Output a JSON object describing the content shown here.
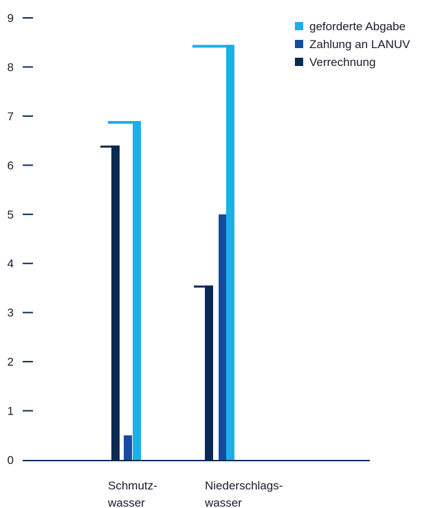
{
  "chart_data": {
    "type": "bar",
    "categories": [
      [
        "Schmutz-",
        "wasser"
      ],
      [
        "Niederschlags-",
        "wasser"
      ]
    ],
    "series": [
      {
        "name": "Verrechnung",
        "values": [
          6.4,
          3.55
        ],
        "color": "#0b2a52"
      },
      {
        "name": "Zahlung an LANUV",
        "values": [
          0.5,
          5.0
        ],
        "color": "#164c9e"
      },
      {
        "name": "geforderte Abgabe",
        "values": [
          6.9,
          8.45
        ],
        "color": "#1ab0e8"
      }
    ],
    "legend_order": [
      "geforderte Abgabe",
      "Zahlung an LANUV",
      "Verrechnung"
    ],
    "ylim": [
      0,
      9
    ],
    "yticks": [
      "0",
      "1",
      "2",
      "3",
      "4",
      "5",
      "6",
      "7",
      "8",
      "9"
    ],
    "legend_position": "top-right",
    "grid": false,
    "axis_color": "#0b2a52"
  }
}
